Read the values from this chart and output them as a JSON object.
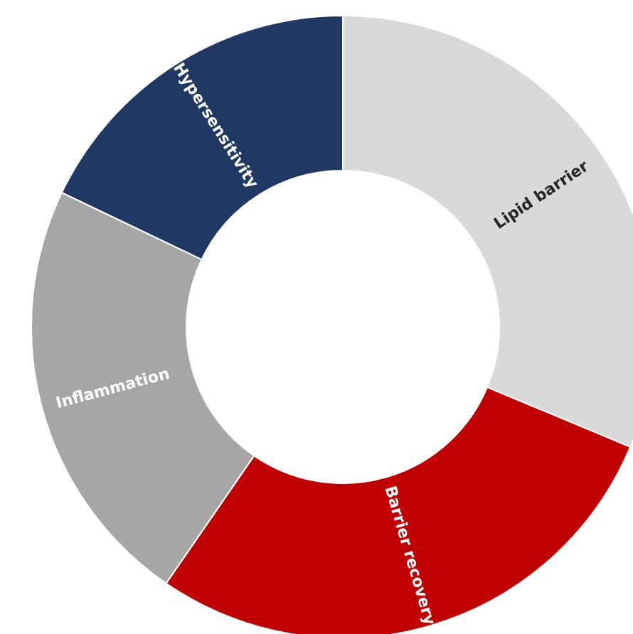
{
  "chart_data": {
    "type": "donut",
    "categories": [
      "Lipid barrier",
      "Barrier recovery",
      "Inflammation",
      "Hypersensitivity"
    ],
    "values": [
      31.3,
      28.3,
      22.5,
      17.9
    ],
    "colors": [
      "#d9d9d9",
      "#c00000",
      "#a6a6a6",
      "#1f3864"
    ]
  }
}
